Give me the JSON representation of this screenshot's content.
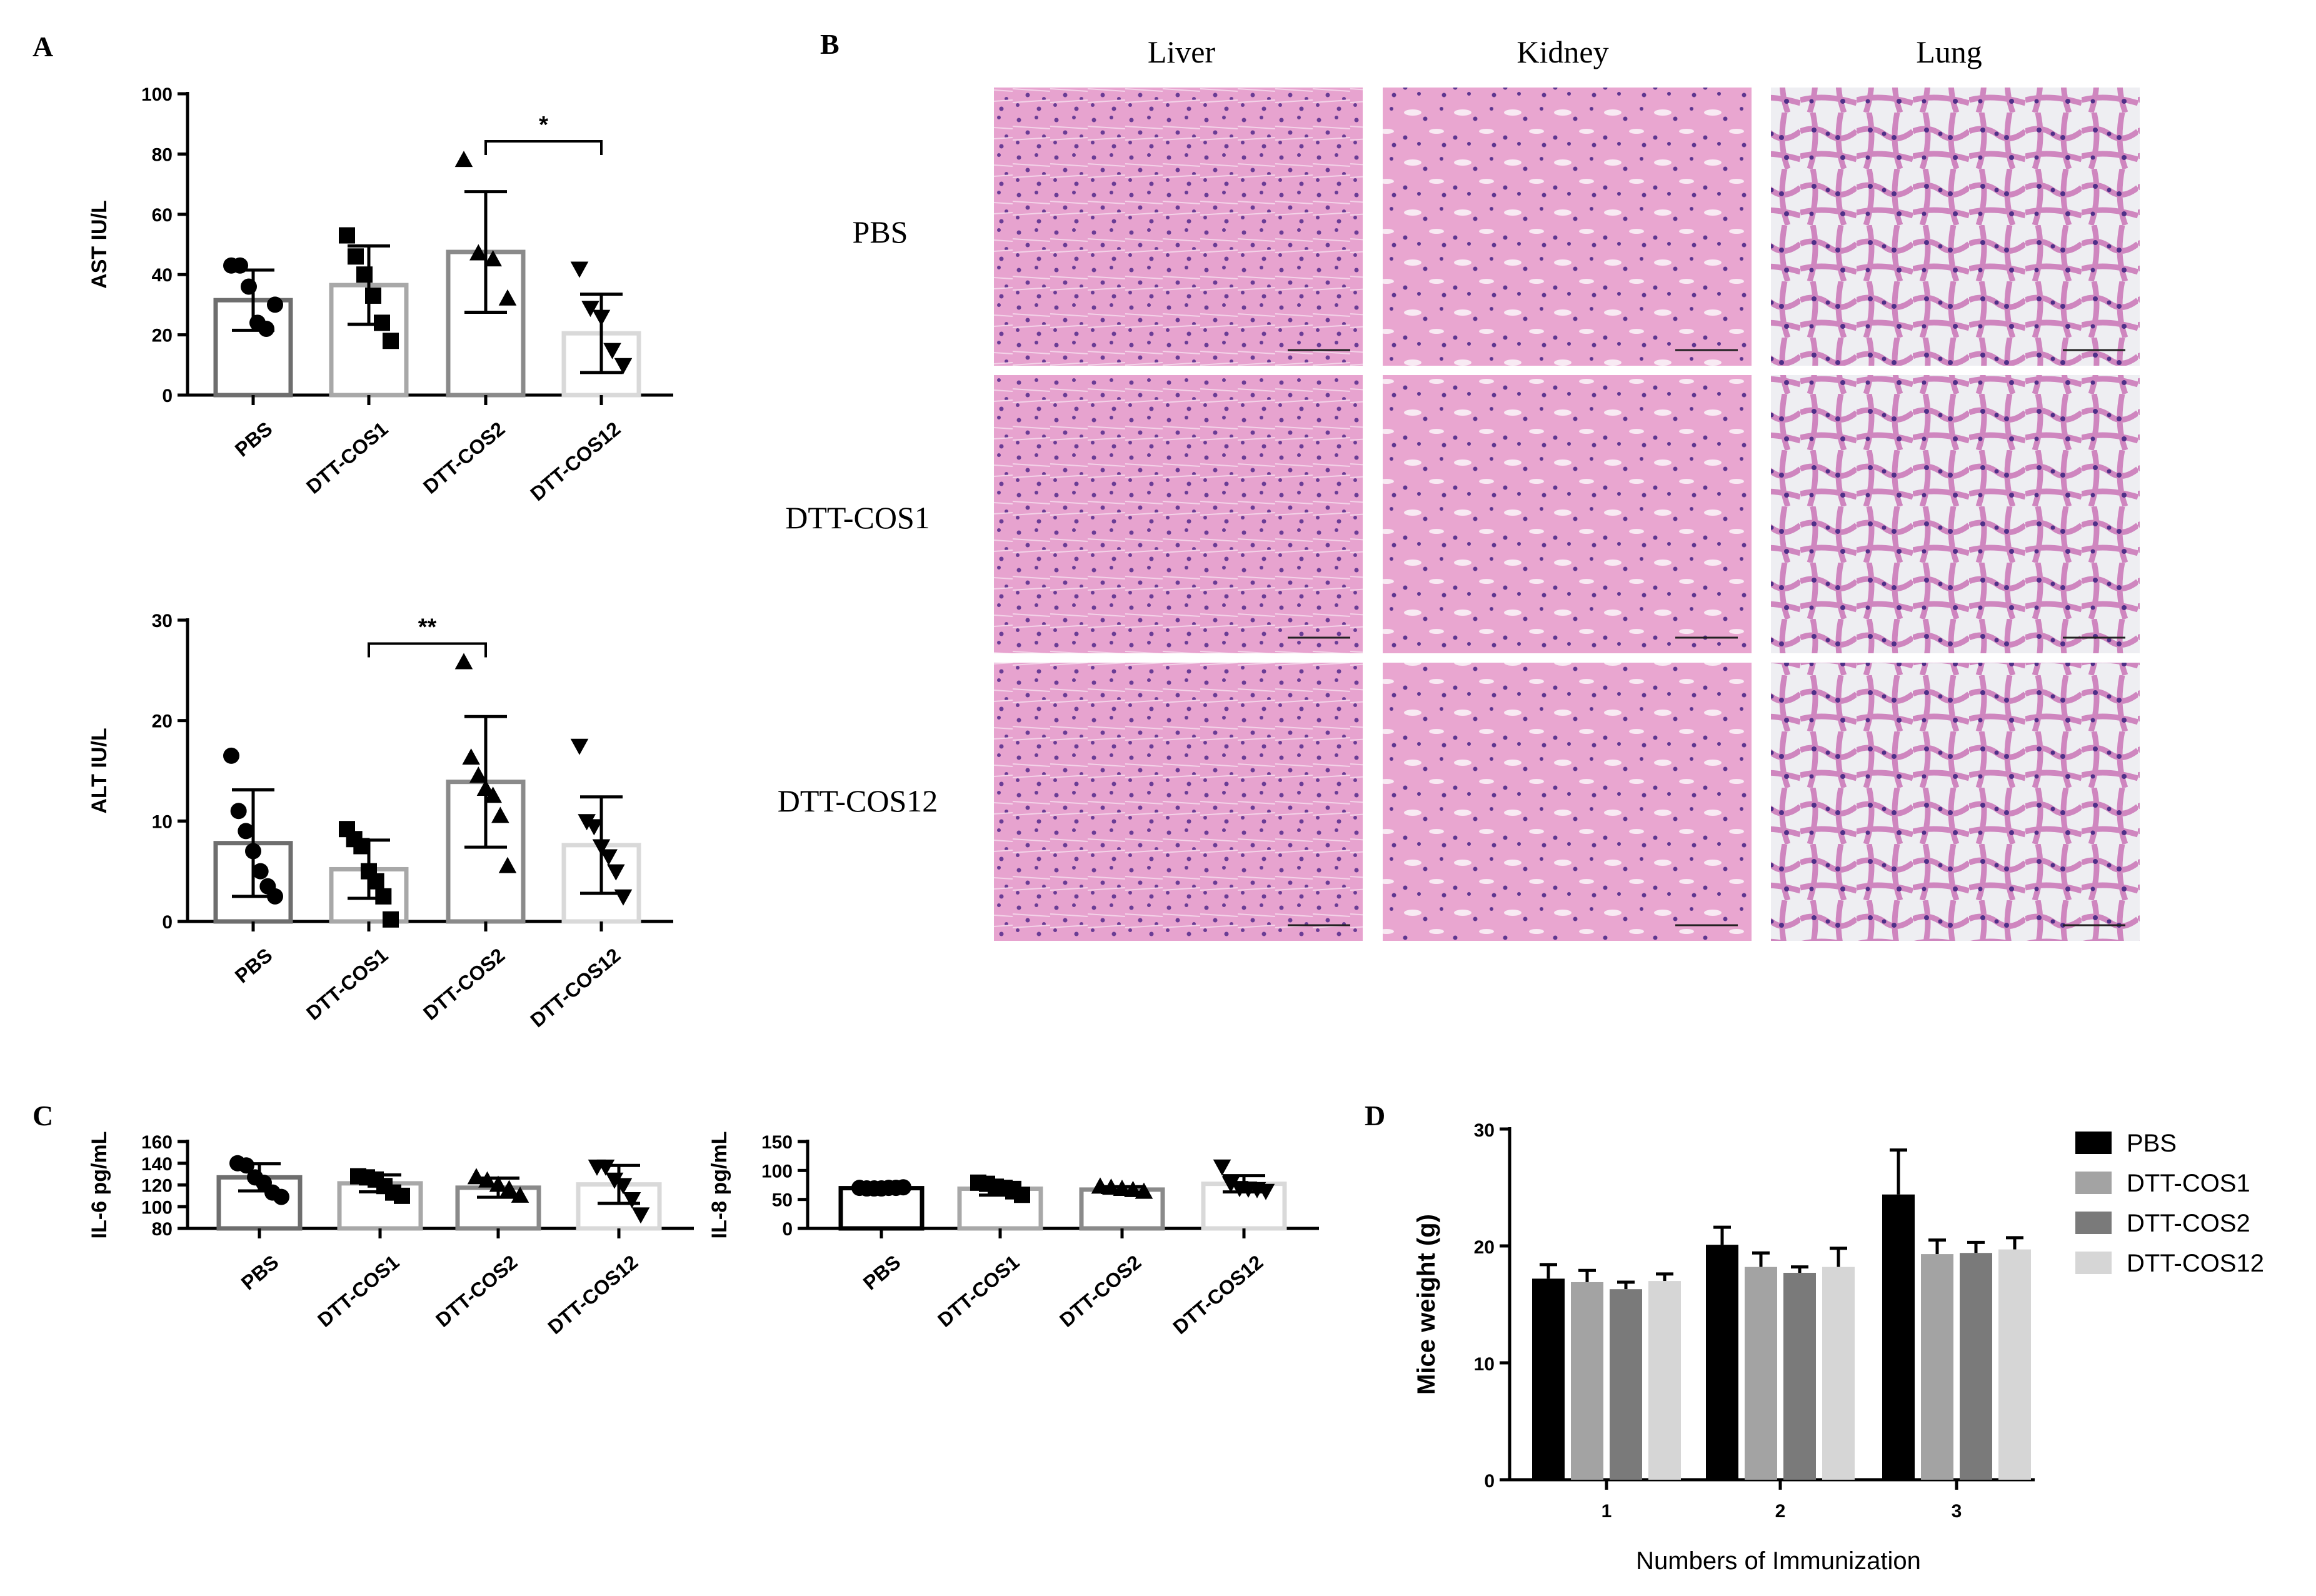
{
  "panels": {
    "A": "A",
    "B": "B",
    "C": "C",
    "D": "D"
  },
  "histology": {
    "columns": [
      "Liver",
      "Kidney",
      "Lung"
    ],
    "rows": [
      "PBS",
      "DTT-COS1",
      "DTT-COS12"
    ]
  },
  "colors": {
    "PBS": "#6e6e6e",
    "DTT-COS1": "#a8a8a8",
    "DTT-COS2": "#8a8a8a",
    "DTT-COS12": "#d9d9d9",
    "tissue_bg": "#e6a6cf",
    "tissue_nuclei": "#5a3a8c"
  },
  "chart_data": [
    {
      "id": "ast",
      "type": "bar",
      "ylabel": "AST IU/L",
      "ylim": [
        0,
        100
      ],
      "yticks": [
        0,
        20,
        40,
        60,
        80,
        100
      ],
      "categories": [
        "PBS",
        "DTT-COS1",
        "DTT-COS2",
        "DTT-COS12"
      ],
      "values": [
        31.5,
        36.5,
        47.5,
        20.5
      ],
      "errors": [
        10,
        13,
        20,
        13
      ],
      "markers": [
        "circle",
        "square",
        "triangle",
        "triangle-down"
      ],
      "points": [
        [
          43,
          43,
          36,
          24,
          22,
          30
        ],
        [
          53,
          46,
          40,
          33,
          24,
          18
        ],
        [
          78,
          47,
          45,
          32
        ],
        [
          42,
          29,
          26,
          15,
          10
        ]
      ],
      "significance": [
        {
          "from": 2,
          "to": 3,
          "label": "*"
        }
      ]
    },
    {
      "id": "alt",
      "type": "bar",
      "ylabel": "ALT IU/L",
      "ylim": [
        0,
        30
      ],
      "yticks": [
        0,
        10,
        20,
        30
      ],
      "categories": [
        "PBS",
        "DTT-COS1",
        "DTT-COS2",
        "DTT-COS12"
      ],
      "values": [
        7.8,
        5.2,
        13.9,
        7.6
      ],
      "errors": [
        5.3,
        2.9,
        6.5,
        4.8
      ],
      "markers": [
        "circle",
        "square",
        "triangle",
        "triangle-down"
      ],
      "points": [
        [
          16.5,
          11,
          9,
          7,
          5,
          3.5,
          2.5
        ],
        [
          9.2,
          8.2,
          7.5,
          5,
          4,
          2.5,
          0.2
        ],
        [
          25.8,
          16.3,
          14.5,
          13.2,
          12.5,
          10.5,
          5.5
        ],
        [
          17.5,
          10,
          9.5,
          7.5,
          6.5,
          5,
          2.5
        ]
      ],
      "significance": [
        {
          "from": 1,
          "to": 2,
          "label": "**"
        }
      ]
    },
    {
      "id": "il6",
      "type": "bar",
      "ylabel": "IL-6 pg/mL",
      "ylim": [
        80,
        160
      ],
      "yticks": [
        80,
        100,
        120,
        140,
        160
      ],
      "categories": [
        "PBS",
        "DTT-COS1",
        "DTT-COS2",
        "DTT-COS12"
      ],
      "values": [
        127,
        121.5,
        117.5,
        120.5
      ],
      "errors": [
        12.5,
        7.8,
        8.8,
        17.5
      ],
      "markers": [
        "circle",
        "square",
        "triangle",
        "triangle-down"
      ],
      "points": [
        [
          140,
          138,
          127,
          122,
          113,
          109
        ],
        [
          128,
          127,
          125,
          119,
          113,
          110
        ],
        [
          127,
          124,
          120,
          116,
          110
        ],
        [
          137,
          137,
          125,
          120,
          107,
          93
        ]
      ],
      "significance": []
    },
    {
      "id": "il8",
      "type": "bar",
      "ylabel": "IL-8 pg/mL",
      "ylim": [
        0,
        150
      ],
      "yticks": [
        0,
        50,
        100,
        150
      ],
      "categories": [
        "PBS",
        "DTT-COS1",
        "DTT-COS2",
        "DTT-COS12"
      ],
      "values": [
        69.5,
        68.5,
        67,
        77
      ],
      "errors": [
        1.5,
        11,
        5,
        14
      ],
      "markers": [
        "circle",
        "square",
        "triangle",
        "triangle-down"
      ],
      "points": [
        [
          70,
          69,
          69,
          69,
          70,
          70,
          71
        ],
        [
          79,
          77,
          72,
          70,
          64,
          58
        ],
        [
          72,
          70,
          68,
          66,
          63
        ],
        [
          107,
          78,
          70,
          69,
          68,
          65
        ]
      ],
      "significance": []
    },
    {
      "id": "weight",
      "type": "bar",
      "xlabel": "Numbers of Immunization",
      "ylabel": "Mice weight (g)",
      "ylim": [
        0,
        30
      ],
      "yticks": [
        0,
        10,
        20,
        30
      ],
      "categories": [
        "1",
        "2",
        "3"
      ],
      "legend": "right",
      "series": [
        {
          "name": "PBS",
          "color": "#000000",
          "values": [
            17.2,
            20.1,
            24.4
          ],
          "errors": [
            1.2,
            1.5,
            3.8
          ]
        },
        {
          "name": "DTT-COS1",
          "color": "#a3a3a3",
          "values": [
            16.9,
            18.2,
            19.3
          ],
          "errors": [
            1.0,
            1.2,
            1.2
          ]
        },
        {
          "name": "DTT-COS2",
          "color": "#7a7a7a",
          "values": [
            16.3,
            17.7,
            19.4
          ],
          "errors": [
            0.6,
            0.5,
            0.9
          ]
        },
        {
          "name": "DTT-COS12",
          "color": "#d6d6d6",
          "values": [
            17.0,
            18.2,
            19.7
          ],
          "errors": [
            0.6,
            1.6,
            1.0
          ]
        }
      ]
    }
  ]
}
